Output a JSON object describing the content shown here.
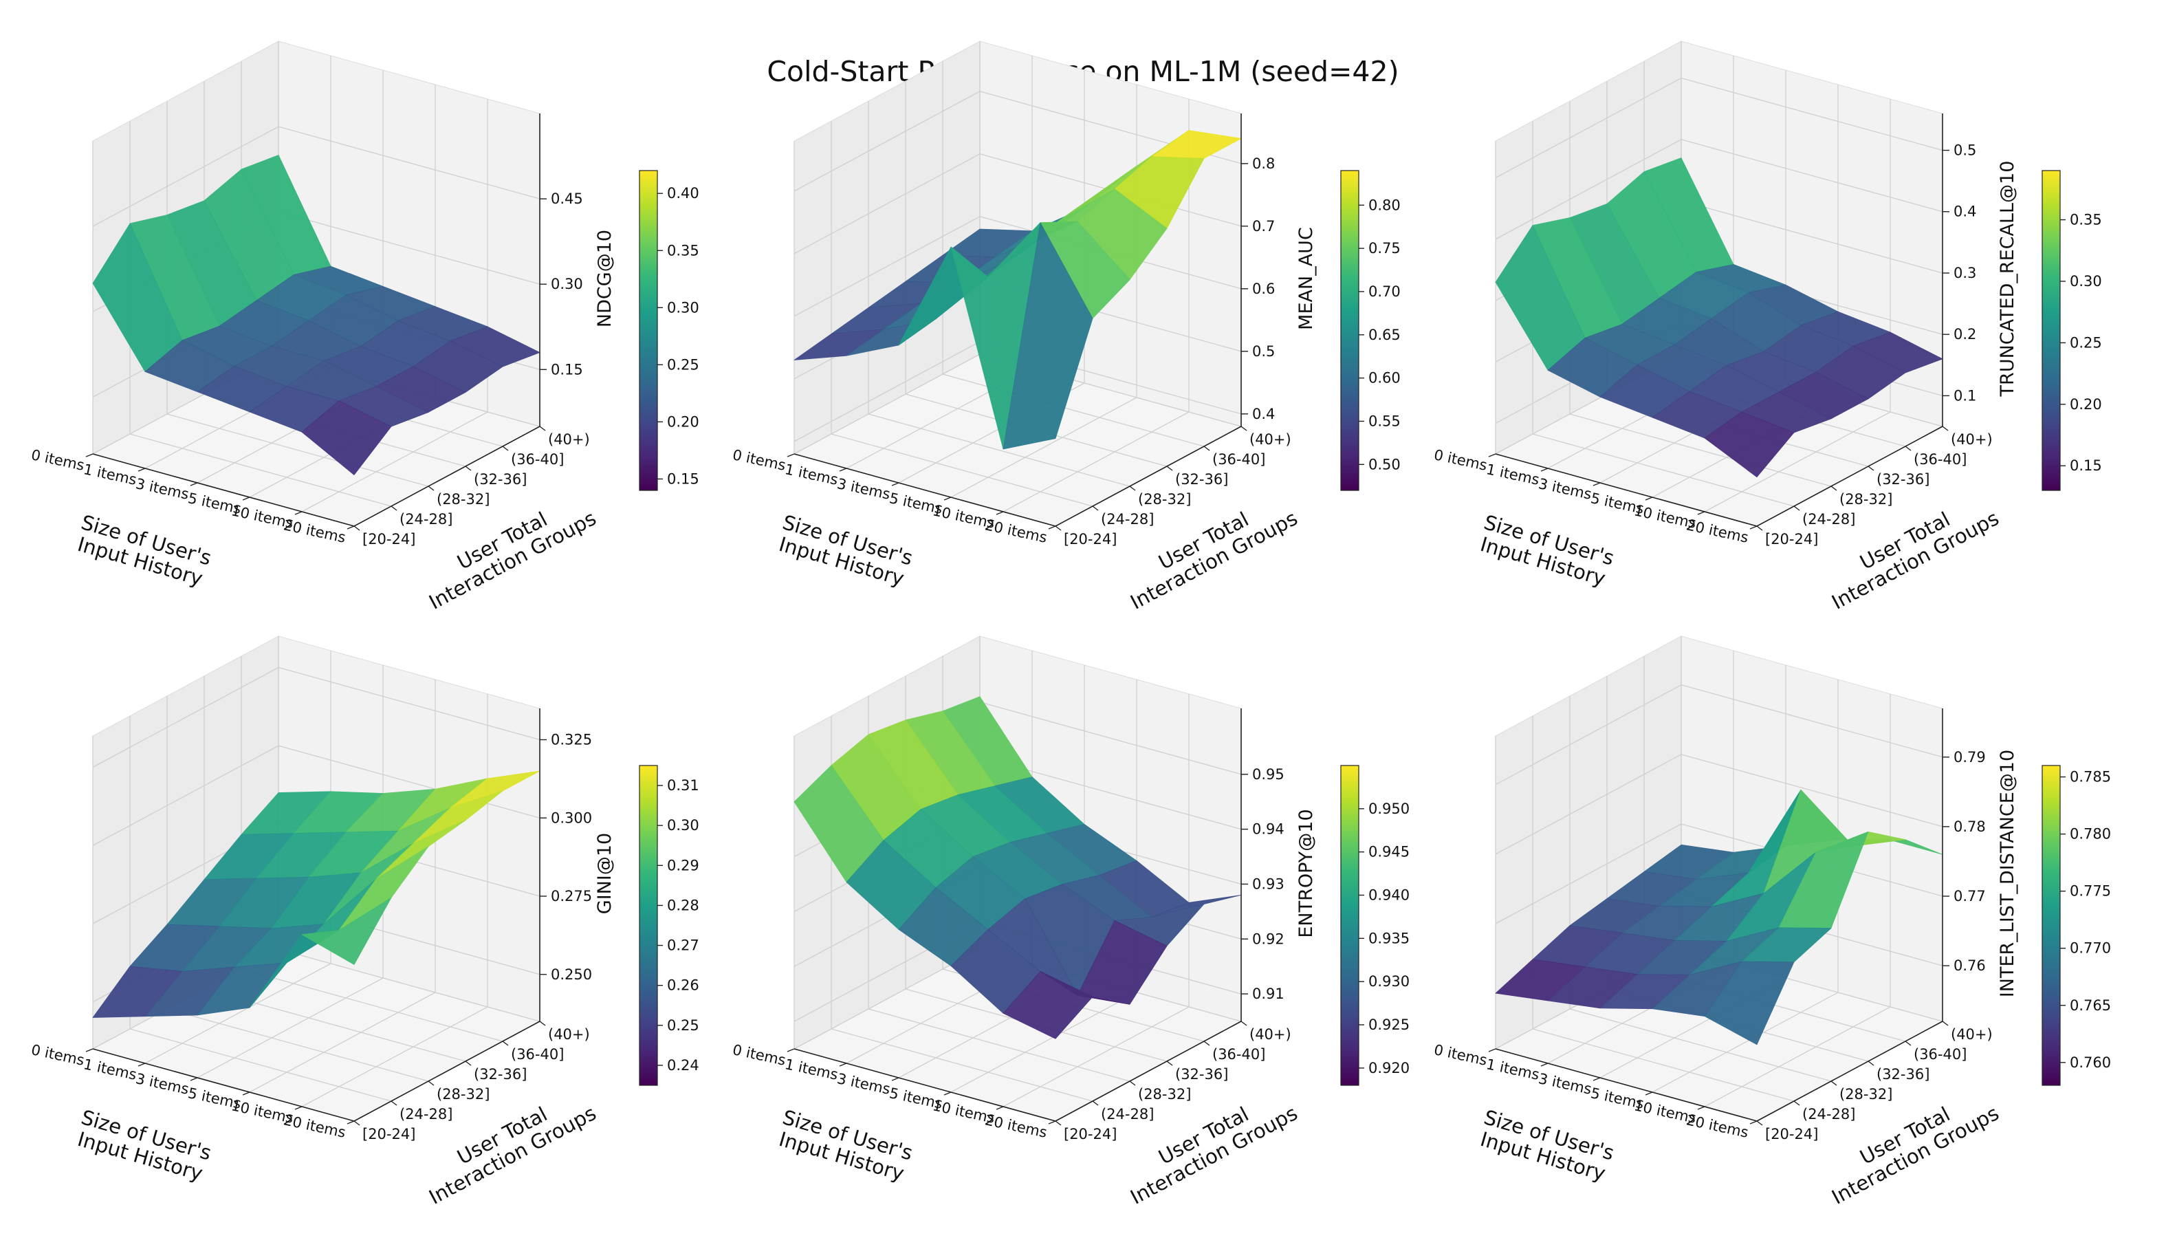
{
  "title": "Cold-Start Performance on ML-1M (seed=42)",
  "chart_data": [
    {
      "type": "surface3d",
      "xlabel": "Size of User's\nInput History",
      "ylabel": "User Total\nInteraction Groups",
      "zlabel": "NDCG@10",
      "x_categories": [
        "0 items",
        "1 items",
        "3 items",
        "5 items",
        "10 items",
        "20 items"
      ],
      "y_categories": [
        "[20-24]",
        "(24-28]",
        "(28-32]",
        "(32-36]",
        "(36-40]",
        "(40+)"
      ],
      "zlim": [
        0.05,
        0.6
      ],
      "zticks": [
        "0.15",
        "0.30",
        "0.45"
      ],
      "colorbar": {
        "range": [
          0.14,
          0.42
        ],
        "ticks": [
          "0.15",
          "0.20",
          "0.25",
          "0.30",
          "0.35",
          "0.40"
        ]
      },
      "z": [
        [
          0.35,
          0.42,
          0.4,
          0.39,
          0.41,
          0.4
        ],
        [
          0.22,
          0.24,
          0.23,
          0.24,
          0.25,
          0.23
        ],
        [
          0.21,
          0.22,
          0.22,
          0.23,
          0.24,
          0.22
        ],
        [
          0.2,
          0.21,
          0.22,
          0.21,
          0.22,
          0.21
        ],
        [
          0.19,
          0.21,
          0.2,
          0.2,
          0.21,
          0.2
        ],
        [
          0.14,
          0.19,
          0.18,
          0.18,
          0.19,
          0.18
        ]
      ]
    },
    {
      "type": "surface3d",
      "xlabel": "Size of User's\nInput History",
      "ylabel": "User Total\nInteraction Groups",
      "zlabel": "MEAN_AUC",
      "x_categories": [
        "0 items",
        "1 items",
        "3 items",
        "5 items",
        "10 items",
        "20 items"
      ],
      "y_categories": [
        "[20-24]",
        "(24-28]",
        "(28-32]",
        "(32-36]",
        "(36-40]",
        "(40+)"
      ],
      "zlim": [
        0.38,
        0.88
      ],
      "zticks": [
        "0.4",
        "0.5",
        "0.6",
        "0.7",
        "0.8"
      ],
      "colorbar": {
        "range": [
          0.47,
          0.84
        ],
        "ticks": [
          "0.50",
          "0.55",
          "0.60",
          "0.65",
          "0.70",
          "0.75",
          "0.80"
        ]
      },
      "z": [
        [
          0.53,
          0.54,
          0.55,
          0.56,
          0.57,
          0.58
        ],
        [
          0.56,
          0.57,
          0.58,
          0.58,
          0.59,
          0.6
        ],
        [
          0.6,
          0.61,
          0.63,
          0.64,
          0.65,
          0.66
        ],
        [
          0.78,
          0.7,
          0.72,
          0.73,
          0.74,
          0.75
        ],
        [
          0.48,
          0.81,
          0.78,
          0.8,
          0.82,
          0.83
        ],
        [
          0.52,
          0.68,
          0.71,
          0.76,
          0.84,
          0.84
        ]
      ]
    },
    {
      "type": "surface3d",
      "xlabel": "Size of User's\nInput History",
      "ylabel": "User Total\nInteraction Groups",
      "zlabel": "TRUNCATED_RECALL@10",
      "x_categories": [
        "0 items",
        "1 items",
        "3 items",
        "5 items",
        "10 items",
        "20 items"
      ],
      "y_categories": [
        "[20-24]",
        "(24-28]",
        "(28-32]",
        "(32-36]",
        "(36-40]",
        "(40+)"
      ],
      "zlim": [
        0.05,
        0.56
      ],
      "zticks": [
        "0.1",
        "0.2",
        "0.3",
        "0.4",
        "0.5"
      ],
      "colorbar": {
        "range": [
          0.13,
          0.39
        ],
        "ticks": [
          "0.15",
          "0.20",
          "0.25",
          "0.30",
          "0.35"
        ]
      },
      "z": [
        [
          0.33,
          0.39,
          0.37,
          0.36,
          0.38,
          0.37
        ],
        [
          0.21,
          0.23,
          0.22,
          0.23,
          0.24,
          0.22
        ],
        [
          0.19,
          0.21,
          0.21,
          0.22,
          0.23,
          0.21
        ],
        [
          0.18,
          0.19,
          0.2,
          0.19,
          0.2,
          0.19
        ],
        [
          0.17,
          0.18,
          0.18,
          0.18,
          0.19,
          0.18
        ],
        [
          0.13,
          0.17,
          0.16,
          0.16,
          0.17,
          0.16
        ]
      ]
    },
    {
      "type": "surface3d",
      "xlabel": "Size of User's\nInput History",
      "ylabel": "User Total\nInteraction Groups",
      "zlabel": "GINI@10",
      "x_categories": [
        "0 items",
        "1 items",
        "3 items",
        "5 items",
        "10 items",
        "20 items"
      ],
      "y_categories": [
        "[20-24]",
        "(24-28]",
        "(28-32]",
        "(32-36]",
        "(36-40]",
        "(40+)"
      ],
      "zlim": [
        0.235,
        0.335
      ],
      "zticks": [
        "0.250",
        "0.275",
        "0.300",
        "0.325"
      ],
      "colorbar": {
        "range": [
          0.235,
          0.315
        ],
        "ticks": [
          "0.24",
          "0.25",
          "0.26",
          "0.27",
          "0.28",
          "0.29",
          "0.30",
          "0.31"
        ]
      },
      "z": [
        [
          0.245,
          0.255,
          0.262,
          0.27,
          0.278,
          0.285
        ],
        [
          0.25,
          0.258,
          0.266,
          0.275,
          0.283,
          0.29
        ],
        [
          0.255,
          0.264,
          0.27,
          0.28,
          0.288,
          0.294
        ],
        [
          0.262,
          0.27,
          0.276,
          0.286,
          0.293,
          0.3
        ],
        [
          0.29,
          0.285,
          0.295,
          0.3,
          0.305,
          0.308
        ],
        [
          0.285,
          0.3,
          0.31,
          0.312,
          0.315,
          0.315
        ]
      ]
    },
    {
      "type": "surface3d",
      "xlabel": "Size of User's\nInput History",
      "ylabel": "User Total\nInteraction Groups",
      "zlabel": "ENTROPY@10",
      "x_categories": [
        "0 items",
        "1 items",
        "3 items",
        "5 items",
        "10 items",
        "20 items"
      ],
      "y_categories": [
        "[20-24]",
        "(24-28]",
        "(28-32]",
        "(32-36]",
        "(36-40]",
        "(40+)"
      ],
      "zlim": [
        0.905,
        0.962
      ],
      "zticks": [
        "0.91",
        "0.92",
        "0.93",
        "0.94",
        "0.95"
      ],
      "colorbar": {
        "range": [
          0.918,
          0.955
        ],
        "ticks": [
          "0.920",
          "0.925",
          "0.930",
          "0.935",
          "0.940",
          "0.945",
          "0.950"
        ]
      },
      "z": [
        [
          0.95,
          0.953,
          0.955,
          0.954,
          0.952,
          0.951
        ],
        [
          0.938,
          0.942,
          0.944,
          0.943,
          0.941,
          0.939
        ],
        [
          0.932,
          0.936,
          0.938,
          0.937,
          0.935,
          0.933
        ],
        [
          0.928,
          0.931,
          0.933,
          0.932,
          0.93,
          0.929
        ],
        [
          0.922,
          0.926,
          0.918,
          0.928,
          0.925,
          0.924
        ],
        [
          0.92,
          0.924,
          0.919,
          0.926,
          0.93,
          0.928
        ]
      ]
    },
    {
      "type": "surface3d",
      "xlabel": "Size of User's\nInput History",
      "ylabel": "User Total\nInteraction Groups",
      "zlabel": "INTER_LIST_DISTANCE@10",
      "x_categories": [
        "0 items",
        "1 items",
        "3 items",
        "5 items",
        "10 items",
        "20 items"
      ],
      "y_categories": [
        "[20-24]",
        "(24-28]",
        "(28-32]",
        "(32-36]",
        "(36-40]",
        "(40+)"
      ],
      "zlim": [
        0.752,
        0.797
      ],
      "zticks": [
        "0.76",
        "0.77",
        "0.78",
        "0.79"
      ],
      "colorbar": {
        "range": [
          0.758,
          0.786
        ],
        "ticks": [
          "0.760",
          "0.765",
          "0.770",
          "0.775",
          "0.780",
          "0.785"
        ]
      },
      "z": [
        [
          0.76,
          0.762,
          0.764,
          0.765,
          0.766,
          0.767
        ],
        [
          0.761,
          0.763,
          0.765,
          0.766,
          0.767,
          0.768
        ],
        [
          0.762,
          0.764,
          0.766,
          0.768,
          0.77,
          0.771
        ],
        [
          0.764,
          0.766,
          0.768,
          0.772,
          0.784,
          0.774
        ],
        [
          0.765,
          0.77,
          0.772,
          0.78,
          0.778,
          0.776
        ],
        [
          0.763,
          0.772,
          0.774,
          0.785,
          0.781,
          0.776
        ]
      ]
    }
  ]
}
